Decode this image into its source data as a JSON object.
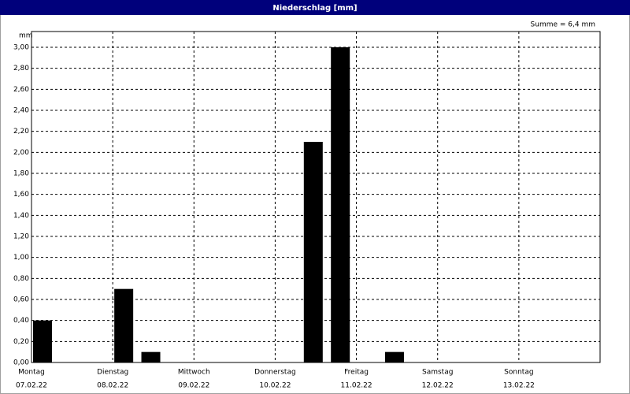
{
  "chart_data": {
    "type": "bar",
    "title": "Niederschlag [mm]",
    "y_unit": "mm",
    "sum_label": "Summe = 6,4 mm",
    "categories": [
      "Montag",
      null,
      null,
      "Dienstag",
      null,
      null,
      "Mittwoch",
      null,
      null,
      "Donnerstag",
      null,
      null,
      "Freitag",
      null,
      null,
      "Samstag",
      null,
      null,
      "Sonntag",
      null,
      null
    ],
    "category_dates": [
      "07.02.22",
      null,
      null,
      "08.02.22",
      null,
      null,
      "09.02.22",
      null,
      null,
      "10.02.22",
      null,
      null,
      "11.02.22",
      null,
      null,
      "12.02.22",
      null,
      null,
      "13.02.22",
      null,
      null
    ],
    "values": [
      0.4,
      0,
      0,
      0.7,
      0.1,
      0,
      0,
      0,
      0,
      0,
      2.1,
      3.0,
      0,
      0.1,
      0,
      0,
      0,
      0,
      0,
      0,
      0
    ],
    "color": "#000000",
    "ylim": [
      0,
      3.0
    ],
    "yticks": [
      {
        "value": 0,
        "label": "0,00"
      },
      {
        "value": 0.2,
        "label": "0,20"
      },
      {
        "value": 0.4,
        "label": "0,40"
      },
      {
        "value": 0.6,
        "label": "0,60"
      },
      {
        "value": 0.8,
        "label": "0,80"
      },
      {
        "value": 1.0,
        "label": "1,00"
      },
      {
        "value": 1.2,
        "label": "1,20"
      },
      {
        "value": 1.4,
        "label": "1,40"
      },
      {
        "value": 1.6,
        "label": "1,60"
      },
      {
        "value": 1.8,
        "label": "1,80"
      },
      {
        "value": 2.0,
        "label": "2,00"
      },
      {
        "value": 2.2,
        "label": "2,20"
      },
      {
        "value": 2.4,
        "label": "2,40"
      },
      {
        "value": 2.6,
        "label": "2,60"
      },
      {
        "value": 2.8,
        "label": "2,80"
      },
      {
        "value": 3.0,
        "label": "3,00"
      }
    ],
    "grid": true
  }
}
